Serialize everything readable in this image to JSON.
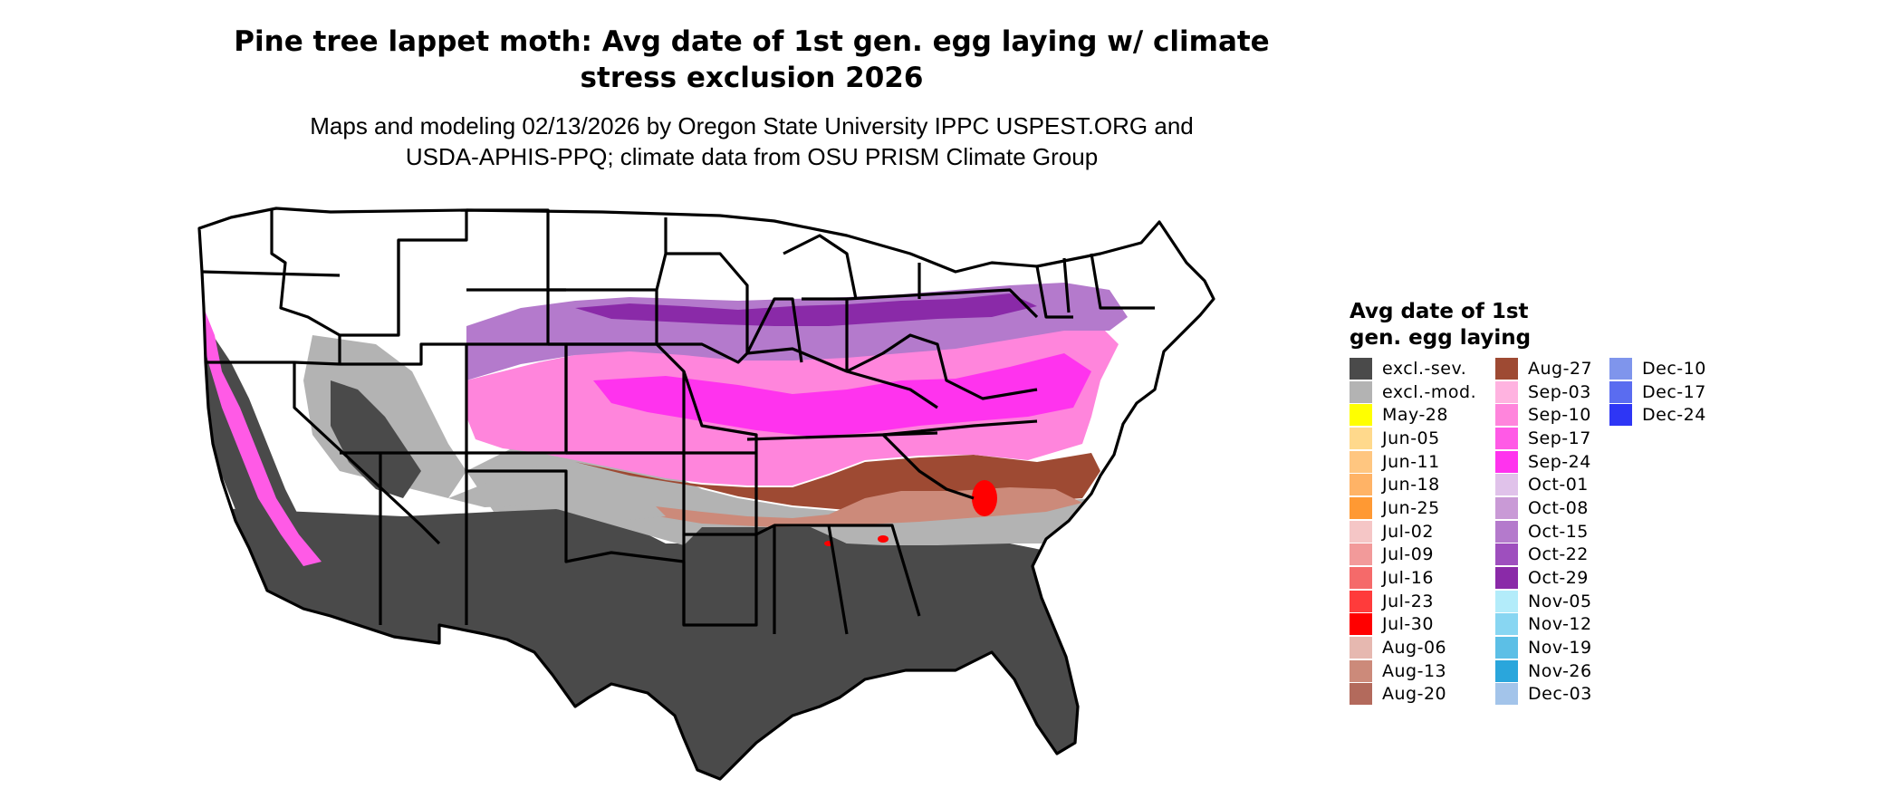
{
  "title_line1": "Pine tree lappet moth: Avg date of 1st gen. egg laying w/ climate",
  "title_line2": "stress exclusion 2026",
  "subtitle_line1": "Maps and modeling 02/13/2026 by Oregon State University IPPC USPEST.ORG and",
  "subtitle_line2": "USDA-APHIS-PPQ; climate data from OSU PRISM Climate Group",
  "legend": {
    "title_line1": "Avg date of 1st",
    "title_line2": "gen. egg laying",
    "items": [
      {
        "label": "excl.-sev.",
        "color": "#4a4a4a"
      },
      {
        "label": "excl.-mod.",
        "color": "#b3b3b3"
      },
      {
        "label": "May-28",
        "color": "#ffff00"
      },
      {
        "label": "Jun-05",
        "color": "#ffd98c"
      },
      {
        "label": "Jun-11",
        "color": "#ffc680"
      },
      {
        "label": "Jun-18",
        "color": "#ffb366"
      },
      {
        "label": "Jun-25",
        "color": "#ff9933"
      },
      {
        "label": "Jul-02",
        "color": "#f5c6c6"
      },
      {
        "label": "Jul-09",
        "color": "#f29a9a"
      },
      {
        "label": "Jul-16",
        "color": "#f56a6a"
      },
      {
        "label": "Jul-23",
        "color": "#ff3b3b"
      },
      {
        "label": "Jul-30",
        "color": "#ff0000"
      },
      {
        "label": "Aug-06",
        "color": "#e6b8b0"
      },
      {
        "label": "Aug-13",
        "color": "#cc8a7a"
      },
      {
        "label": "Aug-20",
        "color": "#b36a5c"
      },
      {
        "label": "Aug-27",
        "color": "#9e4a33"
      },
      {
        "label": "Sep-03",
        "color": "#ffb3e0"
      },
      {
        "label": "Sep-10",
        "color": "#ff85dc"
      },
      {
        "label": "Sep-17",
        "color": "#ff5ae6"
      },
      {
        "label": "Sep-24",
        "color": "#ff33ee"
      },
      {
        "label": "Oct-01",
        "color": "#e0c2ea"
      },
      {
        "label": "Oct-08",
        "color": "#c99ad6"
      },
      {
        "label": "Oct-15",
        "color": "#b47acc"
      },
      {
        "label": "Oct-22",
        "color": "#9e4fbe"
      },
      {
        "label": "Oct-29",
        "color": "#8a2aa8"
      },
      {
        "label": "Nov-05",
        "color": "#b3ecfa"
      },
      {
        "label": "Nov-12",
        "color": "#88d6f2"
      },
      {
        "label": "Nov-19",
        "color": "#5cbfe6"
      },
      {
        "label": "Nov-26",
        "color": "#2aa6dc"
      },
      {
        "label": "Dec-03",
        "color": "#a3c4ea"
      },
      {
        "label": "Dec-10",
        "color": "#7f95ec"
      },
      {
        "label": "Dec-17",
        "color": "#5a6cf0"
      },
      {
        "label": "Dec-24",
        "color": "#2e36f5"
      }
    ]
  }
}
